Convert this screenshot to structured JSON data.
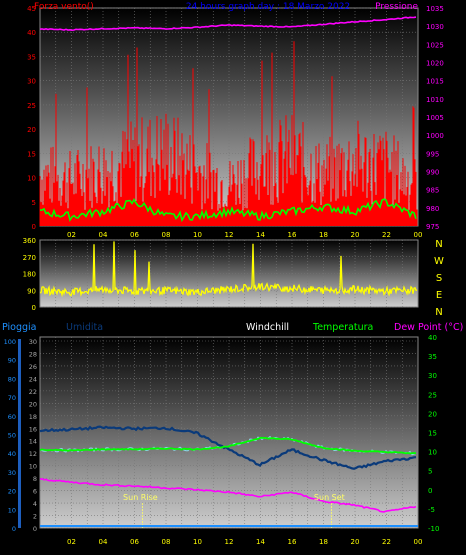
{
  "chart_data": [
    {
      "type": "line",
      "title": "24 hours graph day : 18 Marzo 2022",
      "left_label": "Forza vento()",
      "right_label": "Pressione",
      "x_ticks": [
        "02",
        "04",
        "06",
        "08",
        "10",
        "12",
        "14",
        "16",
        "18",
        "20",
        "22",
        "00"
      ],
      "left_ylim": [
        0,
        45
      ],
      "left_ticks": [
        "45",
        "40",
        "35",
        "30",
        "25",
        "20",
        "15",
        "10",
        "5",
        "0"
      ],
      "right_ylim": [
        975,
        1035
      ],
      "right_ticks": [
        "1035",
        "1030",
        "1025",
        "1020",
        "1015",
        "1010",
        "1005",
        "1000",
        "995",
        "990",
        "985",
        "980",
        "975"
      ],
      "series": [
        {
          "values_hours": [
            0,
            2,
            4,
            6,
            8,
            10,
            12,
            14,
            16,
            18,
            20,
            22,
            24
          ],
          "values": [
            1029.2,
            1029.0,
            1029.3,
            1029.5,
            1029.3,
            1029.7,
            1030.3,
            1030.0,
            1029.8,
            1030.5,
            1031.2,
            1031.8,
            1032.6
          ]
        },
        {
          "values_hours": [
            0,
            2,
            4,
            6,
            8,
            10,
            12,
            14,
            16,
            18,
            20,
            22,
            24
          ],
          "values": [
            11,
            10,
            12,
            14,
            16,
            12,
            9,
            13,
            15,
            11,
            14,
            13,
            9
          ]
        },
        {
          "values_hours": [
            0,
            2,
            4,
            6,
            8,
            10,
            12,
            14,
            16,
            18,
            20,
            22,
            24
          ],
          "values": [
            3,
            2,
            3,
            5,
            2,
            2,
            3,
            2,
            3,
            4,
            3,
            5,
            2
          ]
        }
      ],
      "grid": true
    },
    {
      "type": "line",
      "left_ylim": [
        0,
        360
      ],
      "left_ticks": [
        "360",
        "270",
        "180",
        "90",
        "0"
      ],
      "right_labels": [
        "N",
        "W",
        "S",
        "E",
        "N"
      ],
      "x_ticks": [
        "02",
        "04",
        "06",
        "08",
        "10",
        "12",
        "14",
        "16",
        "18",
        "20",
        "22",
        "00"
      ],
      "series": [
        {
          "values_hours": [
            0,
            2,
            4,
            6,
            8,
            10,
            12,
            14,
            16,
            18,
            20,
            22,
            24
          ],
          "values": [
            90,
            80,
            95,
            85,
            88,
            80,
            95,
            110,
            100,
            90,
            95,
            85,
            90
          ]
        }
      ],
      "grid": true
    },
    {
      "type": "line",
      "legend": [
        "Pioggia",
        "Umidita",
        "Windchill",
        "Temperatura",
        "Dew Point (°C)"
      ],
      "rain_ticks": [
        "100",
        "90",
        "80",
        "70",
        "60",
        "50",
        "40",
        "30",
        "20",
        "10",
        "0"
      ],
      "hum_ticks": [
        "30",
        "28",
        "26",
        "24",
        "22",
        "20",
        "18",
        "16",
        "14",
        "12",
        "10",
        "8",
        "6",
        "4",
        "2",
        "0"
      ],
      "temp_ticks": [
        "40",
        "35",
        "30",
        "25",
        "20",
        "15",
        "10",
        "5",
        "0",
        "-5",
        "-10"
      ],
      "temp_ylim": [
        -10,
        40
      ],
      "x_ticks": [
        "02",
        "04",
        "06",
        "08",
        "10",
        "12",
        "14",
        "16",
        "18",
        "20",
        "22",
        "00"
      ],
      "annotations": [
        "Sun Rise",
        "Sun Set"
      ],
      "sun_rise_hour": 6.5,
      "sun_set_hour": 18.5,
      "series": [
        {
          "values_hours": [
            0,
            2,
            4,
            6,
            8,
            10,
            12,
            14,
            16,
            18,
            20,
            22,
            24
          ],
          "values": [
            10.5,
            10.3,
            10.6,
            10.6,
            10.8,
            10.6,
            11.3,
            13.6,
            13.2,
            11.0,
            10.2,
            9.9,
            9.5
          ]
        },
        {
          "values_hours": [
            0,
            2,
            4,
            6,
            8,
            10,
            12,
            14,
            16,
            18,
            20,
            22,
            24
          ],
          "values": [
            15.5,
            15.8,
            16.3,
            16.0,
            16.2,
            14.8,
            10.6,
            6.5,
            10.5,
            7.8,
            5.5,
            7.5,
            8.5
          ]
        },
        {
          "values_hours": [
            0,
            2,
            4,
            6,
            8,
            10,
            12,
            14,
            16,
            18,
            20,
            22,
            24
          ],
          "values": [
            2.8,
            2.0,
            1.3,
            1.0,
            0.5,
            0.0,
            -0.6,
            -1.8,
            -0.6,
            -3.0,
            -4.0,
            -5.8,
            -4.3
          ]
        },
        {
          "values_hours": [
            0,
            2,
            4,
            6,
            8,
            10,
            12,
            14,
            16,
            18,
            20,
            22,
            24
          ],
          "values": [
            0,
            0,
            0,
            0,
            0,
            0,
            0,
            0,
            0,
            0,
            0,
            0,
            0
          ]
        }
      ],
      "grid": true
    }
  ],
  "colors": {
    "wind": "#ff0000",
    "gust_avg": "#00ff00",
    "pressure": "#ff00ff",
    "wind_dir": "#ffff00",
    "temperature": "#00ff00",
    "humidity": "#0a3a7a",
    "dew_point": "#ff00ff",
    "windchill": "#88ddee",
    "rain": "#1e90ff",
    "title": "#0000ff"
  }
}
